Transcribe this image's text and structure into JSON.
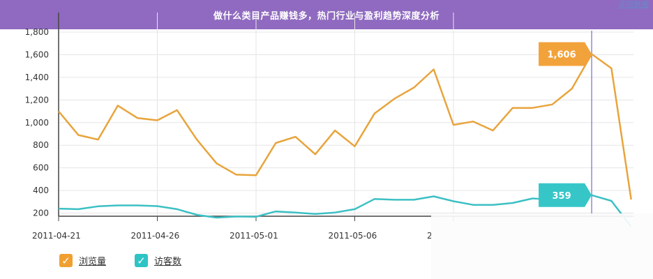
{
  "banner": {
    "title": "做什么类目产品赚钱多，热门行业与盈利趋势深度分析"
  },
  "corner_link": "评测数据",
  "legend": [
    {
      "label": "浏览量",
      "check": "✓",
      "color": "#f0a030"
    },
    {
      "label": "访客数",
      "check": "✓",
      "color": "#2ec4c6"
    }
  ],
  "colors": {
    "pageviews": "#e8a43c",
    "visitors": "#3cc0c4",
    "marker_line": "#7b68c8",
    "grid": "#e5e5e5"
  },
  "chart_data": {
    "type": "line",
    "x": [
      "2011-04-21",
      "2011-04-22",
      "2011-04-23",
      "2011-04-24",
      "2011-04-25",
      "2011-04-26",
      "2011-04-27",
      "2011-04-28",
      "2011-04-29",
      "2011-04-30",
      "2011-05-01",
      "2011-05-02",
      "2011-05-03",
      "2011-05-04",
      "2011-05-05",
      "2011-05-06",
      "2011-05-07",
      "2011-05-08",
      "2011-05-09",
      "2011-05-10",
      "2011-05-11",
      "2011-05-12",
      "2011-05-13",
      "2011-05-14",
      "2011-05-15",
      "2011-05-16",
      "2011-05-17",
      "2011-05-18",
      "2011-05-19",
      "2011-05-20"
    ],
    "x_tick_labels": [
      "2011-04-21",
      "2011-04-26",
      "2011-05-01",
      "2011-05-06",
      "2"
    ],
    "y_tick_labels": [
      "200",
      "400",
      "600",
      "800",
      "1,000",
      "1,200",
      "1,400",
      "1,600",
      "1,800"
    ],
    "ylim": [
      0,
      1800
    ],
    "grid": true,
    "series": [
      {
        "name": "浏览量",
        "values": [
          1100,
          890,
          850,
          1150,
          1040,
          1020,
          1110,
          850,
          640,
          540,
          535,
          820,
          875,
          720,
          930,
          790,
          1080,
          1210,
          1310,
          1470,
          980,
          1010,
          930,
          1130,
          1130,
          1160,
          1300,
          1606,
          1480,
          320
        ]
      },
      {
        "name": "访客数",
        "values": [
          240,
          235,
          260,
          268,
          268,
          262,
          235,
          185,
          160,
          170,
          168,
          215,
          205,
          193,
          205,
          235,
          325,
          318,
          318,
          348,
          305,
          273,
          273,
          290,
          330,
          320,
          359,
          359,
          308,
          80
        ]
      }
    ],
    "annotations": [
      {
        "series": 0,
        "index": 27,
        "text": "1,606"
      },
      {
        "series": 1,
        "index": 27,
        "text": "359"
      }
    ],
    "marker_index": 27
  }
}
